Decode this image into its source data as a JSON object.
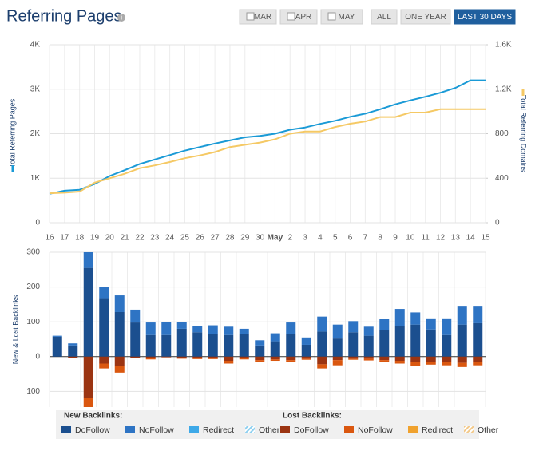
{
  "header": {
    "title": "Referring Pages",
    "buttons": [
      {
        "label": "MAR",
        "checkbox": true,
        "active": false
      },
      {
        "label": "APR",
        "checkbox": true,
        "active": false
      },
      {
        "label": "MAY",
        "checkbox": true,
        "active": false
      },
      {
        "label": "ALL",
        "checkbox": false,
        "active": false
      },
      {
        "label": "ONE YEAR",
        "checkbox": false,
        "active": false
      },
      {
        "label": "LAST 30 DAYS",
        "checkbox": false,
        "active": true
      }
    ]
  },
  "chart_data": [
    {
      "type": "line",
      "categories": [
        "16",
        "17",
        "18",
        "19",
        "20",
        "21",
        "22",
        "23",
        "24",
        "25",
        "26",
        "27",
        "28",
        "29",
        "30",
        "May",
        "2",
        "3",
        "4",
        "5",
        "6",
        "7",
        "8",
        "9",
        "10",
        "11",
        "12",
        "13",
        "14",
        "15"
      ],
      "series": [
        {
          "name": "Total Referring Pages",
          "color": "#1a9ad6",
          "values": [
            650,
            720,
            740,
            870,
            1050,
            1180,
            1320,
            1420,
            1520,
            1620,
            1700,
            1780,
            1850,
            1920,
            1950,
            2000,
            2090,
            2140,
            2220,
            2290,
            2380,
            2450,
            2550,
            2660,
            2750,
            2830,
            2920,
            3030,
            3200,
            3200
          ]
        },
        {
          "name": "Total Referring Domains",
          "color": "#f5c965",
          "axis": "y2",
          "values": [
            265,
            270,
            280,
            360,
            400,
            440,
            490,
            515,
            545,
            580,
            605,
            635,
            680,
            700,
            720,
            750,
            800,
            820,
            820,
            860,
            890,
            910,
            950,
            950,
            990,
            990,
            1020,
            1020,
            1020,
            1020
          ]
        }
      ],
      "ylim": [
        0,
        4000
      ],
      "yticks": [
        0,
        {
          "value": 1000,
          "label": "1K"
        },
        {
          "value": 2000,
          "label": "2K"
        },
        {
          "value": 3000,
          "label": "3K"
        },
        {
          "value": 4000,
          "label": "4K"
        }
      ],
      "y2lim": [
        0,
        1600
      ],
      "y2ticks": [
        0,
        400,
        800,
        {
          "value": 1200,
          "label": "1.2K"
        },
        {
          "value": 1600,
          "label": "1.6K"
        }
      ],
      "grid": true
    },
    {
      "type": "stacked_bar",
      "y_label": "New & Lost Backlinks",
      "legend_groups": [
        "New Backlinks:",
        "Lost Backlinks:"
      ],
      "series": [
        {
          "name": "DoFollow",
          "group": 0,
          "color": "#1b4f8f",
          "values": [
            57,
            32,
            255,
            168,
            128,
            98,
            62,
            62,
            80,
            70,
            66,
            62,
            64,
            32,
            44,
            64,
            34,
            72,
            52,
            70,
            60,
            76,
            88,
            92,
            78,
            62,
            92,
            96
          ]
        },
        {
          "name": "NoFollow",
          "group": 0,
          "color": "#2e74c4",
          "values": [
            3,
            6,
            45,
            32,
            48,
            37,
            36,
            38,
            20,
            17,
            24,
            24,
            16,
            15,
            23,
            34,
            21,
            43,
            40,
            32,
            26,
            32,
            49,
            35,
            32,
            48,
            54,
            50
          ]
        },
        {
          "name": "Redirect",
          "group": 0,
          "color": "#3ea9e8",
          "values": [
            0,
            0,
            0,
            0,
            0,
            0,
            0,
            0,
            0,
            0,
            0,
            0,
            0,
            0,
            0,
            0,
            0,
            0,
            0,
            0,
            0,
            0,
            0,
            0,
            0,
            0,
            0,
            0
          ]
        },
        {
          "name": "Other",
          "group": 0,
          "color": "#8fd0f0",
          "pattern": "hatch",
          "values": [
            0,
            0,
            0,
            0,
            0,
            0,
            0,
            0,
            0,
            0,
            0,
            0,
            0,
            0,
            0,
            0,
            0,
            0,
            0,
            0,
            0,
            0,
            0,
            0,
            0,
            0,
            0,
            0
          ]
        },
        {
          "name": "DoFollow",
          "group": 1,
          "color": "#9b3412",
          "values": [
            0,
            -3,
            -118,
            -20,
            -28,
            -5,
            -5,
            -2,
            -4,
            -5,
            -5,
            -12,
            -5,
            -10,
            -8,
            -10,
            -6,
            -22,
            -10,
            -6,
            -6,
            -10,
            -12,
            -15,
            -15,
            -15,
            -18,
            -15
          ]
        },
        {
          "name": "NoFollow",
          "group": 1,
          "color": "#da570f",
          "values": [
            0,
            0,
            -30,
            -14,
            -18,
            0,
            -3,
            0,
            -2,
            -2,
            -2,
            -8,
            -3,
            -5,
            -4,
            -6,
            -3,
            -12,
            -15,
            -3,
            -5,
            -5,
            -8,
            -12,
            -8,
            -10,
            -12,
            -10
          ]
        },
        {
          "name": "Redirect",
          "group": 1,
          "color": "#f0a22e",
          "values": [
            0,
            0,
            0,
            0,
            0,
            0,
            0,
            0,
            0,
            0,
            0,
            0,
            0,
            0,
            0,
            0,
            0,
            0,
            0,
            0,
            0,
            0,
            0,
            0,
            0,
            0,
            0,
            0
          ]
        },
        {
          "name": "Other",
          "group": 1,
          "color": "#f2c98a",
          "pattern": "hatch",
          "values": [
            0,
            0,
            0,
            0,
            0,
            0,
            0,
            0,
            0,
            0,
            0,
            0,
            0,
            0,
            0,
            0,
            0,
            0,
            0,
            0,
            0,
            0,
            0,
            0,
            0,
            0,
            0,
            0
          ]
        }
      ],
      "ylim": [
        -145,
        300
      ],
      "yticks": [
        300,
        200,
        100,
        0,
        {
          "value": -100,
          "label": "100"
        }
      ],
      "grid": true
    }
  ]
}
